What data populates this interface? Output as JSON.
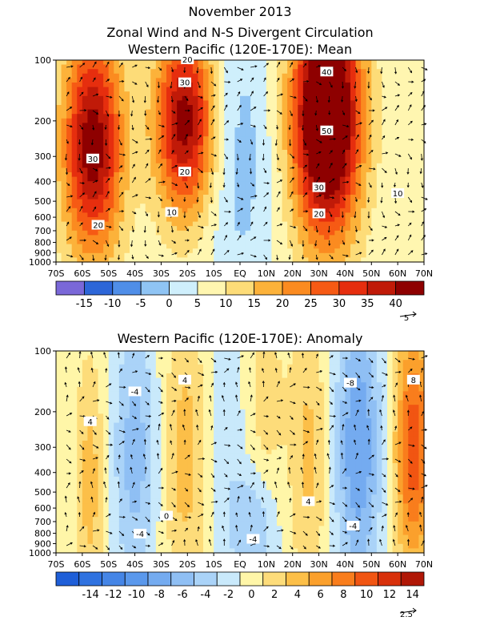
{
  "header": {
    "line1": "November 2013",
    "line2": "Zonal Wind and N-S Divergent Circulation",
    "line3": "Western Pacific (120E-170E): Mean"
  },
  "chart_data": [
    {
      "type": "heatmap",
      "title": "Western Pacific (120E-170E): Mean",
      "x_ticks": [
        "70S",
        "60S",
        "50S",
        "40S",
        "30S",
        "20S",
        "10S",
        "EQ",
        "10N",
        "20N",
        "30N",
        "40N",
        "50N",
        "60N",
        "70N"
      ],
      "x_range": [
        -70,
        70
      ],
      "y_ticks": [
        "100",
        "200",
        "300",
        "400",
        "500",
        "600",
        "700",
        "800",
        "900",
        "1000"
      ],
      "y_range_hpa": [
        1000,
        100
      ],
      "y_scale": "log",
      "colorbar_levels": [
        -20,
        -15,
        -10,
        -5,
        0,
        5,
        10,
        15,
        20,
        25,
        30,
        35,
        40,
        45
      ],
      "colorbar_labels": [
        "-15",
        "-10",
        "-5",
        "0",
        "5",
        "10",
        "15",
        "20",
        "25",
        "30",
        "35",
        "40"
      ],
      "colorbar_colors": [
        "#7a68d8",
        "#2d66d8",
        "#4f8ee8",
        "#8fc4f4",
        "#cfeffc",
        "#fff6b0",
        "#fddc78",
        "#fcb23a",
        "#fb8b20",
        "#f65a14",
        "#e62e0e",
        "#c01a08",
        "#8e0000"
      ],
      "vector_reference": "5",
      "contour_labels": [
        {
          "text": "20",
          "lat": -20,
          "p": 100
        },
        {
          "text": "30",
          "lat": -21,
          "p": 130
        },
        {
          "text": "30",
          "lat": -56,
          "p": 310
        },
        {
          "text": "20",
          "lat": -21,
          "p": 360
        },
        {
          "text": "10",
          "lat": -26,
          "p": 570
        },
        {
          "text": "20",
          "lat": -54,
          "p": 660
        },
        {
          "text": "40",
          "lat": 33,
          "p": 115
        },
        {
          "text": "50",
          "lat": 33,
          "p": 225
        },
        {
          "text": "30",
          "lat": 30,
          "p": 430
        },
        {
          "text": "20",
          "lat": 30,
          "p": 580
        },
        {
          "text": "10",
          "lat": 60,
          "p": 460
        }
      ],
      "jets": [
        {
          "lat": -56,
          "p": 260,
          "amp": 38,
          "sx": 8,
          "sy": 0.9
        },
        {
          "lat": -21,
          "p": 200,
          "amp": 37,
          "sx": 8,
          "sy": 0.75
        },
        {
          "lat": 33,
          "p": 190,
          "amp": 55,
          "sx": 9,
          "sy": 0.95
        },
        {
          "lat": 0,
          "p": 300,
          "amp": -8,
          "sx": 9,
          "sy": 1.3
        }
      ],
      "background": 6
    },
    {
      "type": "heatmap",
      "title": "Western Pacific (120E-170E): Anomaly",
      "x_ticks": [
        "70S",
        "60S",
        "50S",
        "40S",
        "30S",
        "20S",
        "10S",
        "EQ",
        "10N",
        "20N",
        "30N",
        "40N",
        "50N",
        "60N",
        "70N"
      ],
      "x_range": [
        -70,
        70
      ],
      "y_ticks": [
        "100",
        "200",
        "300",
        "400",
        "500",
        "600",
        "700",
        "800",
        "900",
        "1000"
      ],
      "y_range_hpa": [
        1000,
        100
      ],
      "y_scale": "log",
      "colorbar_levels": [
        -16,
        -14,
        -12,
        -10,
        -8,
        -6,
        -4,
        -2,
        0,
        2,
        4,
        6,
        8,
        10,
        12,
        14,
        16
      ],
      "colorbar_labels": [
        "-14",
        "-12",
        "-10",
        "-8",
        "-6",
        "-4",
        "-2",
        "0",
        "2",
        "4",
        "6",
        "8",
        "10",
        "12",
        "14"
      ],
      "colorbar_colors": [
        "#1f5fd8",
        "#2f72e0",
        "#4585e6",
        "#5a98ec",
        "#74abf0",
        "#8fbff4",
        "#aad3f8",
        "#c9e9fb",
        "#fff6a8",
        "#fddc7a",
        "#fcbf48",
        "#fba02c",
        "#f97d1c",
        "#f15512",
        "#d8300a",
        "#b01706"
      ],
      "vector_reference": "2.5",
      "contour_labels": [
        {
          "text": "-4",
          "lat": -40,
          "p": 160
        },
        {
          "text": "4",
          "lat": -21,
          "p": 140
        },
        {
          "text": "4",
          "lat": -57,
          "p": 225
        },
        {
          "text": "-8",
          "lat": 42,
          "p": 145
        },
        {
          "text": "8",
          "lat": 66,
          "p": 140
        },
        {
          "text": "4",
          "lat": 26,
          "p": 560
        },
        {
          "text": "-4",
          "lat": 43,
          "p": 740
        },
        {
          "text": "-4",
          "lat": -38,
          "p": 810
        },
        {
          "text": "0",
          "lat": -28,
          "p": 660
        },
        {
          "text": "-4",
          "lat": 5,
          "p": 860
        }
      ],
      "jets": [
        {
          "lat": -57,
          "p": 450,
          "amp": 4.5,
          "sx": 4,
          "sy": 1.0
        },
        {
          "lat": -40,
          "p": 320,
          "amp": -5.5,
          "sx": 6,
          "sy": 1.1
        },
        {
          "lat": -21,
          "p": 330,
          "amp": 4.5,
          "sx": 6,
          "sy": 1.1
        },
        {
          "lat": -5,
          "p": 250,
          "amp": -2.0,
          "sx": 5,
          "sy": 1.2
        },
        {
          "lat": 10,
          "p": 180,
          "amp": 2.5,
          "sx": 5,
          "sy": 0.8
        },
        {
          "lat": 5,
          "p": 750,
          "amp": -4.5,
          "sx": 6,
          "sy": 0.45
        },
        {
          "lat": 26,
          "p": 320,
          "amp": 4.0,
          "sx": 5,
          "sy": 1.2
        },
        {
          "lat": 45,
          "p": 300,
          "amp": -8.5,
          "sx": 6,
          "sy": 1.1
        },
        {
          "lat": 66,
          "p": 300,
          "amp": 11.0,
          "sx": 5,
          "sy": 1.0
        }
      ],
      "background": 0.5
    }
  ]
}
